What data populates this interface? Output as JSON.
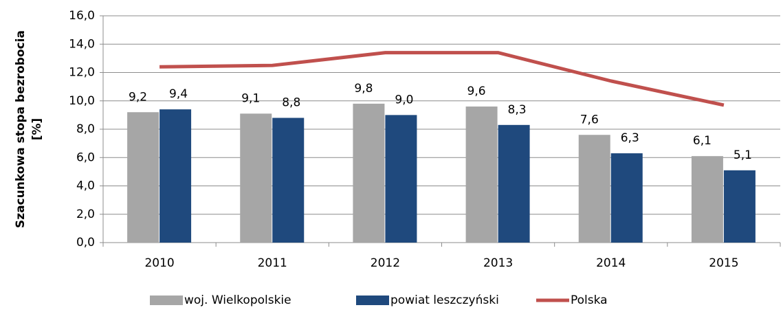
{
  "chart_data": {
    "type": "bar",
    "ylabel": [
      "Szacunkowa stopa bezrobocia",
      "[%]"
    ],
    "categories": [
      "2010",
      "2011",
      "2012",
      "2013",
      "2014",
      "2015"
    ],
    "series": [
      {
        "name": "woj. Wielkopolskie",
        "color": "#a6a6a6",
        "values": [
          9.2,
          9.1,
          9.8,
          9.6,
          7.6,
          6.1
        ],
        "value_labels": [
          "9,2",
          "9,1",
          "9,8",
          "9,6",
          "7,6",
          "6,1"
        ]
      },
      {
        "name": "powiat leszczyński",
        "color": "#1f497d",
        "values": [
          9.4,
          8.8,
          9.0,
          8.3,
          6.3,
          5.1
        ],
        "value_labels": [
          "9,4",
          "8,8",
          "9,0",
          "8,3",
          "6,3",
          "5,1"
        ]
      },
      {
        "name": "Polska",
        "color": "#c0504d",
        "type": "line",
        "values": [
          12.4,
          12.5,
          13.4,
          13.4,
          11.4,
          9.7
        ]
      }
    ],
    "ylim": [
      0,
      16
    ],
    "yticks": [
      {
        "value": 0,
        "label": "0,0"
      },
      {
        "value": 2,
        "label": "2,0"
      },
      {
        "value": 4,
        "label": "4,0"
      },
      {
        "value": 6,
        "label": "6,0"
      },
      {
        "value": 8,
        "label": "8,0"
      },
      {
        "value": 10,
        "label": "10,0"
      },
      {
        "value": 12,
        "label": "12,0"
      },
      {
        "value": 14,
        "label": "14,0"
      },
      {
        "value": 16,
        "label": "16,0"
      }
    ],
    "grid": true,
    "legend": "bottom"
  }
}
